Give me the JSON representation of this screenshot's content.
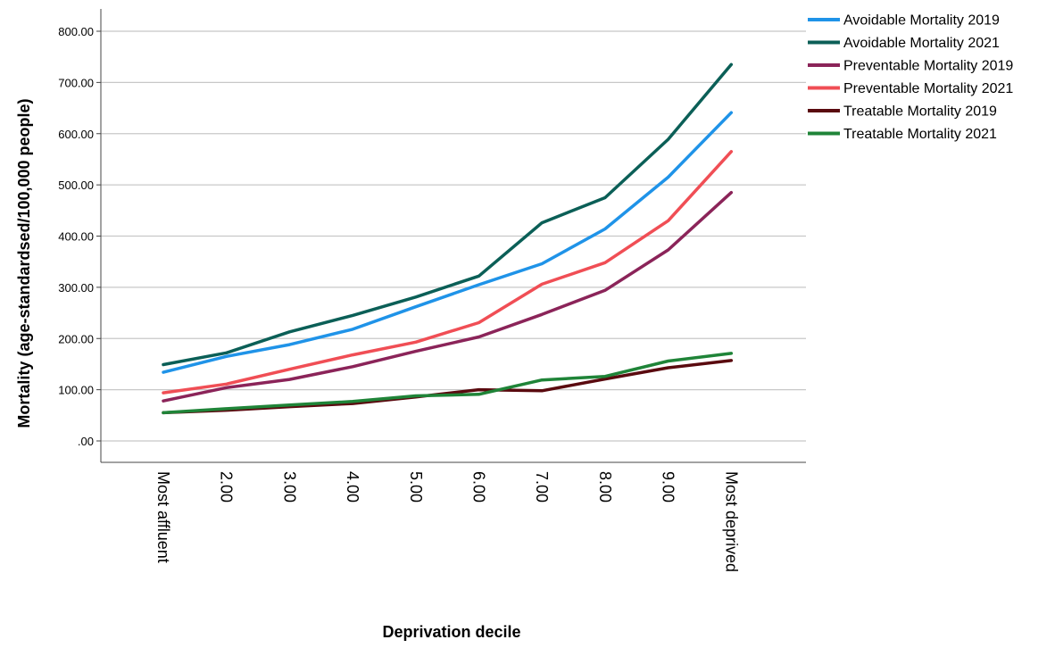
{
  "chart_data": {
    "type": "line",
    "xlabel": "Deprivation decile",
    "ylabel": "Mortality (age-standardsed/100,000 people)",
    "categories": [
      "Most affluent",
      "2.00",
      "3.00",
      "4.00",
      "5.00",
      "6.00",
      "7.00",
      "8.00",
      "9.00",
      "Most deprived"
    ],
    "ylim": [
      0,
      800
    ],
    "yticks": [
      ".00",
      "100.00",
      "200.00",
      "300.00",
      "400.00",
      "500.00",
      "600.00",
      "700.00",
      "800.00"
    ],
    "grid": true,
    "legend_position": "top-right",
    "series": [
      {
        "name": "Avoidable Mortality 2019",
        "color": "#1f93e8",
        "values": [
          134,
          165,
          188,
          218,
          262,
          305,
          346,
          414,
          515,
          641
        ]
      },
      {
        "name": "Avoidable Mortality 2021",
        "color": "#0b5f57",
        "values": [
          149,
          172,
          213,
          245,
          281,
          322,
          426,
          475,
          589,
          735
        ]
      },
      {
        "name": "Preventable Mortality 2019",
        "color": "#8b2459",
        "values": [
          78,
          104,
          120,
          145,
          175,
          203,
          247,
          294,
          373,
          485
        ]
      },
      {
        "name": "Preventable Mortality 2021",
        "color": "#f04e55",
        "values": [
          94,
          111,
          140,
          168,
          193,
          231,
          306,
          348,
          430,
          565
        ]
      },
      {
        "name": "Treatable Mortality 2019",
        "color": "#5a0a0f",
        "values": [
          55,
          60,
          67,
          73,
          86,
          100,
          98,
          121,
          143,
          157
        ]
      },
      {
        "name": "Treatable Mortality 2021",
        "color": "#1f8438",
        "values": [
          55,
          63,
          70,
          77,
          88,
          91,
          119,
          126,
          156,
          171
        ]
      }
    ]
  }
}
